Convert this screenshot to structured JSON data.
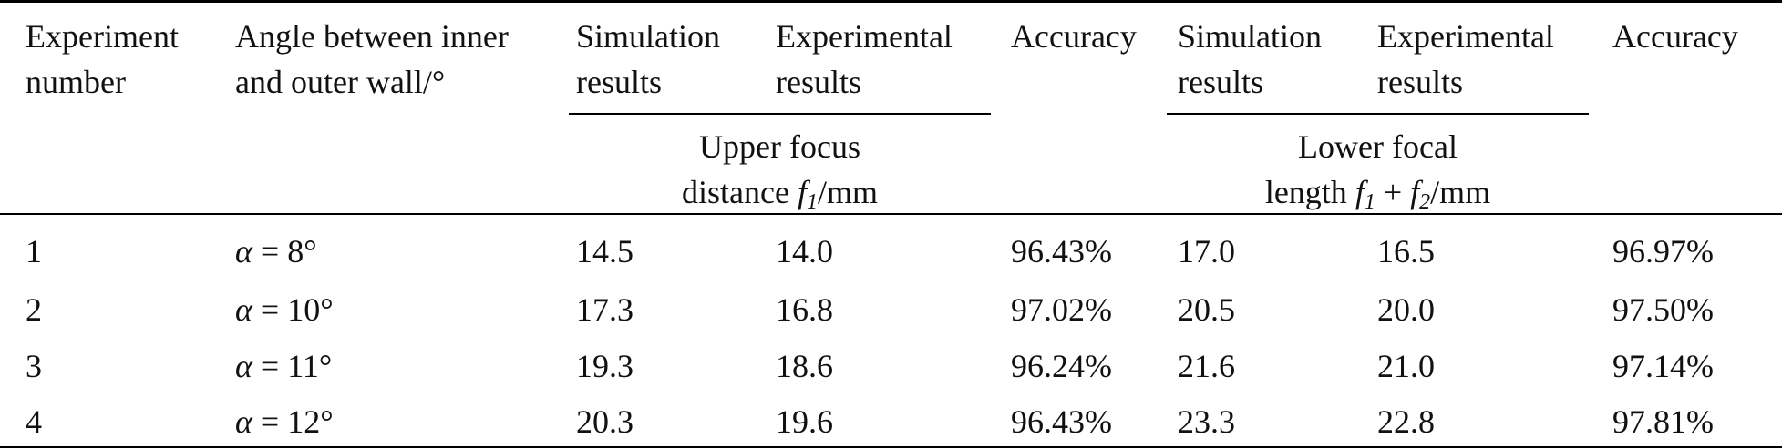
{
  "table": {
    "headers": {
      "experiment_number_line1": "Experiment",
      "experiment_number_line2": "number",
      "angle_line1": "Angle between inner",
      "angle_line2": "and outer wall/°",
      "sim1_line1": "Simulation",
      "sim1_line2": "results",
      "exp1_line1": "Experimental",
      "exp1_line2": "results",
      "acc1": "Accuracy",
      "sim2_line1": "Simulation",
      "sim2_line2": "results",
      "exp2_line1": "Experimental",
      "exp2_line2": "results",
      "acc2": "Accuracy"
    },
    "group_upper": {
      "line1": "Upper focus",
      "line2_prefix": "distance ",
      "var": "f",
      "sub": "1",
      "unit": "/mm"
    },
    "group_lower": {
      "line1": "Lower focal",
      "line2_prefix": "length ",
      "var1": "f",
      "sub1": "1",
      "plus": " + ",
      "var2": "f",
      "sub2": "2",
      "unit": "/mm"
    },
    "rows": [
      {
        "num": "1",
        "alpha_symbol": "α",
        "alpha_value": " = 8°",
        "sim_upper": "14.5",
        "exp_upper": "14.0",
        "acc_upper": "96.43%",
        "sim_lower": "17.0",
        "exp_lower": "16.5",
        "acc_lower": "96.97%"
      },
      {
        "num": "2",
        "alpha_symbol": "α",
        "alpha_value": " = 10°",
        "sim_upper": "17.3",
        "exp_upper": "16.8",
        "acc_upper": "97.02%",
        "sim_lower": "20.5",
        "exp_lower": "20.0",
        "acc_lower": "97.50%"
      },
      {
        "num": "3",
        "alpha_symbol": "α",
        "alpha_value": " = 11°",
        "sim_upper": "19.3",
        "exp_upper": "18.6",
        "acc_upper": "96.24%",
        "sim_lower": "21.6",
        "exp_lower": "21.0",
        "acc_lower": "97.14%"
      },
      {
        "num": "4",
        "alpha_symbol": "α",
        "alpha_value": " = 12°",
        "sim_upper": "20.3",
        "exp_upper": "19.6",
        "acc_upper": "96.43%",
        "sim_lower": "23.3",
        "exp_lower": "22.8",
        "acc_lower": "97.81%"
      }
    ]
  }
}
